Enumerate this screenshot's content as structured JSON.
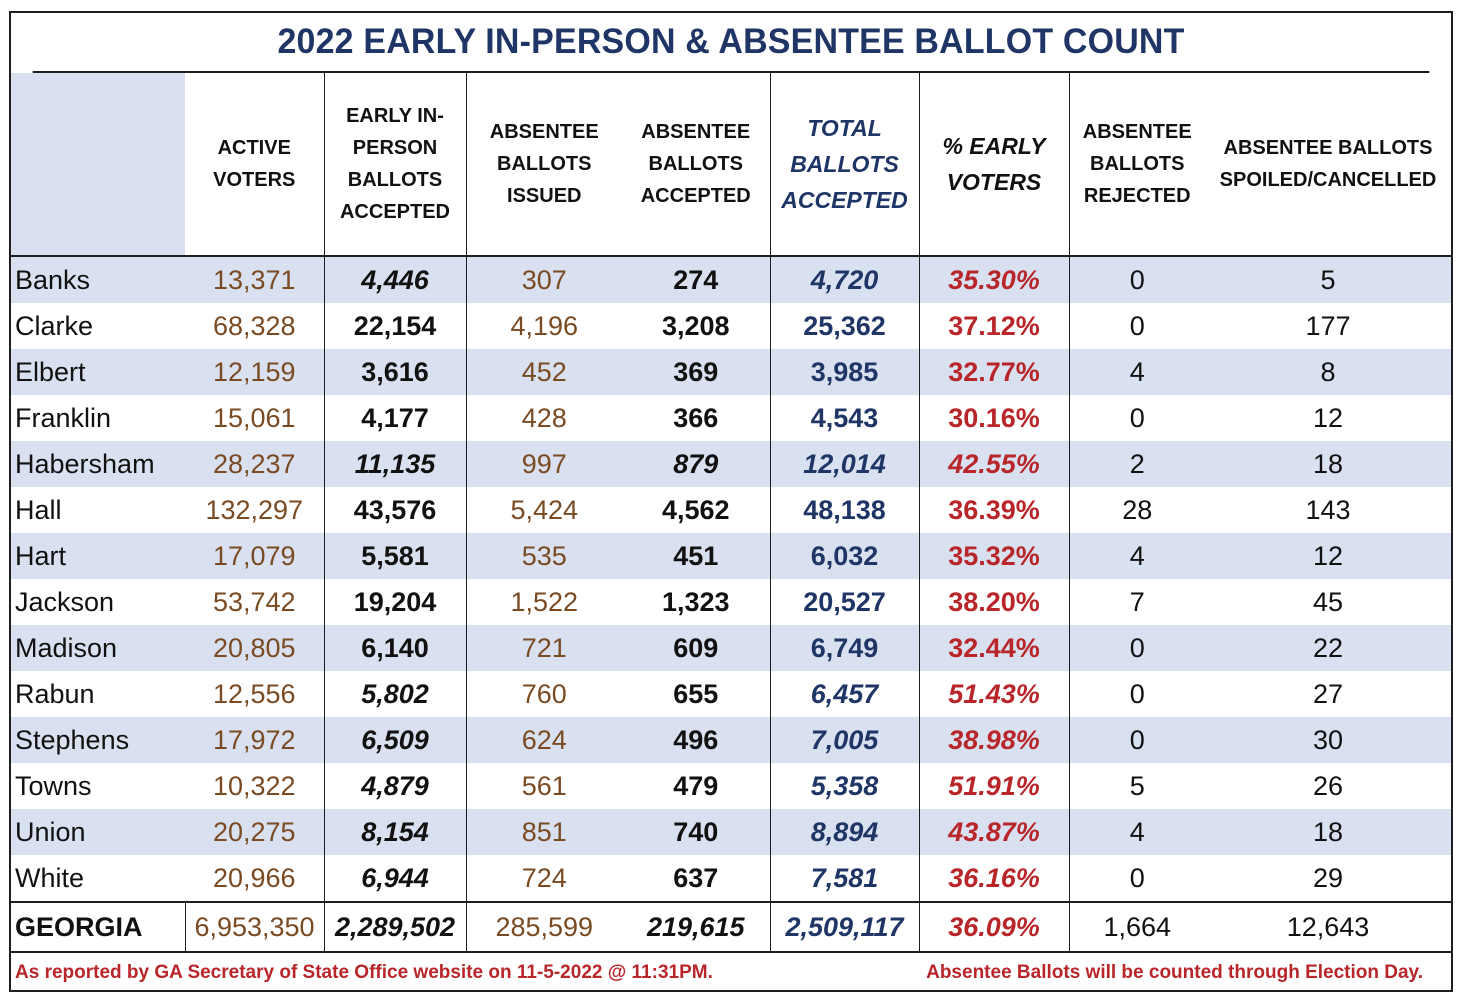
{
  "title": "2022 EARLY IN-PERSON & ABSENTEE BALLOT COUNT",
  "headers": {
    "county": "",
    "active_voters": "ACTIVE VOTERS",
    "early_in_person": "EARLY IN-PERSON BALLOTS ACCEPTED",
    "absentee_issued": "ABSENTEE BALLOTS ISSUED",
    "absentee_accepted": "ABSENTEE BALLOTS ACCEPTED",
    "total_accepted": "TOTAL BALLOTS ACCEPTED",
    "pct_early": "% EARLY VOTERS",
    "absentee_rejected": "ABSENTEE BALLOTS REJECTED",
    "absentee_spoiled": "ABSENTEE BALLOTS SPOILED/CANCELLED"
  },
  "rows": [
    {
      "county": "Banks",
      "active_voters": "13,371",
      "early_in_person": "4,446",
      "absentee_issued": "307",
      "absentee_accepted": "274",
      "total_accepted": "4,720",
      "pct_early": "35.30%",
      "absentee_rejected": "0",
      "absentee_spoiled": "5",
      "italic": true,
      "abs_italic": false
    },
    {
      "county": "Clarke",
      "active_voters": "68,328",
      "early_in_person": "22,154",
      "absentee_issued": "4,196",
      "absentee_accepted": "3,208",
      "total_accepted": "25,362",
      "pct_early": "37.12%",
      "absentee_rejected": "0",
      "absentee_spoiled": "177",
      "italic": false,
      "abs_italic": false
    },
    {
      "county": "Elbert",
      "active_voters": "12,159",
      "early_in_person": "3,616",
      "absentee_issued": "452",
      "absentee_accepted": "369",
      "total_accepted": "3,985",
      "pct_early": "32.77%",
      "absentee_rejected": "4",
      "absentee_spoiled": "8",
      "italic": false,
      "abs_italic": false
    },
    {
      "county": "Franklin",
      "active_voters": "15,061",
      "early_in_person": "4,177",
      "absentee_issued": "428",
      "absentee_accepted": "366",
      "total_accepted": "4,543",
      "pct_early": "30.16%",
      "absentee_rejected": "0",
      "absentee_spoiled": "12",
      "italic": false,
      "abs_italic": false
    },
    {
      "county": "Habersham",
      "active_voters": "28,237",
      "early_in_person": "11,135",
      "absentee_issued": "997",
      "absentee_accepted": "879",
      "total_accepted": "12,014",
      "pct_early": "42.55%",
      "absentee_rejected": "2",
      "absentee_spoiled": "18",
      "italic": true,
      "abs_italic": true
    },
    {
      "county": "Hall",
      "active_voters": "132,297",
      "early_in_person": "43,576",
      "absentee_issued": "5,424",
      "absentee_accepted": "4,562",
      "total_accepted": "48,138",
      "pct_early": "36.39%",
      "absentee_rejected": "28",
      "absentee_spoiled": "143",
      "italic": false,
      "abs_italic": false
    },
    {
      "county": "Hart",
      "active_voters": "17,079",
      "early_in_person": "5,581",
      "absentee_issued": "535",
      "absentee_accepted": "451",
      "total_accepted": "6,032",
      "pct_early": "35.32%",
      "absentee_rejected": "4",
      "absentee_spoiled": "12",
      "italic": false,
      "abs_italic": false
    },
    {
      "county": "Jackson",
      "active_voters": "53,742",
      "early_in_person": "19,204",
      "absentee_issued": "1,522",
      "absentee_accepted": "1,323",
      "total_accepted": "20,527",
      "pct_early": "38.20%",
      "absentee_rejected": "7",
      "absentee_spoiled": "45",
      "italic": false,
      "abs_italic": false
    },
    {
      "county": "Madison",
      "active_voters": "20,805",
      "early_in_person": "6,140",
      "absentee_issued": "721",
      "absentee_accepted": "609",
      "total_accepted": "6,749",
      "pct_early": "32.44%",
      "absentee_rejected": "0",
      "absentee_spoiled": "22",
      "italic": false,
      "abs_italic": false
    },
    {
      "county": "Rabun",
      "active_voters": "12,556",
      "early_in_person": "5,802",
      "absentee_issued": "760",
      "absentee_accepted": "655",
      "total_accepted": "6,457",
      "pct_early": "51.43%",
      "absentee_rejected": "0",
      "absentee_spoiled": "27",
      "italic": true,
      "abs_italic": false
    },
    {
      "county": "Stephens",
      "active_voters": "17,972",
      "early_in_person": "6,509",
      "absentee_issued": "624",
      "absentee_accepted": "496",
      "total_accepted": "7,005",
      "pct_early": "38.98%",
      "absentee_rejected": "0",
      "absentee_spoiled": "30",
      "italic": true,
      "abs_italic": false
    },
    {
      "county": "Towns",
      "active_voters": "10,322",
      "early_in_person": "4,879",
      "absentee_issued": "561",
      "absentee_accepted": "479",
      "total_accepted": "5,358",
      "pct_early": "51.91%",
      "absentee_rejected": "5",
      "absentee_spoiled": "26",
      "italic": true,
      "abs_italic": false
    },
    {
      "county": "Union",
      "active_voters": "20,275",
      "early_in_person": "8,154",
      "absentee_issued": "851",
      "absentee_accepted": "740",
      "total_accepted": "8,894",
      "pct_early": "43.87%",
      "absentee_rejected": "4",
      "absentee_spoiled": "18",
      "italic": true,
      "abs_italic": false
    },
    {
      "county": "White",
      "active_voters": "20,966",
      "early_in_person": "6,944",
      "absentee_issued": "724",
      "absentee_accepted": "637",
      "total_accepted": "7,581",
      "pct_early": "36.16%",
      "absentee_rejected": "0",
      "absentee_spoiled": "29",
      "italic": true,
      "abs_italic": false
    }
  ],
  "total": {
    "county": "GEORGIA",
    "active_voters": "6,953,350",
    "early_in_person": "2,289,502",
    "absentee_issued": "285,599",
    "absentee_accepted": "219,615",
    "total_accepted": "2,509,117",
    "pct_early": "36.09%",
    "absentee_rejected": "1,664",
    "absentee_spoiled": "12,643"
  },
  "footer": {
    "left": "As reported by GA Secretary of State Office website on 11-5-2022 @ 11:31PM.",
    "right": "Absentee Ballots will be counted through Election Day."
  },
  "colors": {
    "title": "#1f3566",
    "brown": "#7a4a22",
    "blue": "#1f3566",
    "red": "#b8262a",
    "band": "#d9e1f0"
  }
}
